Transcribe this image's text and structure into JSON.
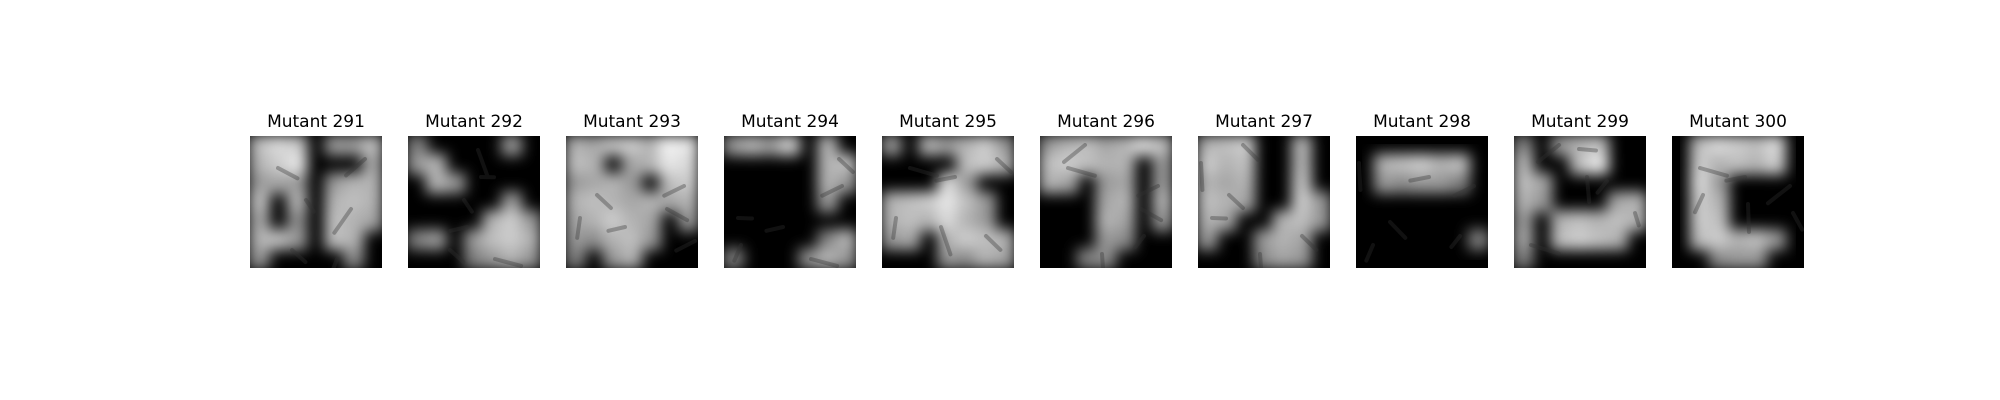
{
  "figure": {
    "panels": [
      {
        "title": "Mutant 291",
        "image_desc": "grayscale mutant cell mask",
        "mask": [
          [
            0.75,
            0.85,
            0.8,
            0.0,
            0.6,
            0.6,
            0.75
          ],
          [
            0.7,
            0.8,
            0.9,
            0.0,
            0.0,
            0.0,
            0.65
          ],
          [
            0.6,
            0.65,
            0.6,
            0.0,
            0.6,
            0.7,
            0.7
          ],
          [
            0.75,
            0.0,
            0.7,
            0.0,
            0.7,
            0.75,
            0.7
          ],
          [
            0.65,
            0.0,
            0.55,
            0.0,
            0.75,
            0.7,
            0.65
          ],
          [
            0.7,
            0.75,
            0.6,
            0.0,
            0.75,
            0.7,
            0.0
          ],
          [
            0.6,
            0.0,
            0.0,
            0.0,
            0.0,
            0.55,
            0.0
          ]
        ]
      },
      {
        "title": "Mutant 292",
        "image_desc": "grayscale mutant cell mask",
        "mask": [
          [
            0.5,
            0.0,
            0.0,
            0.0,
            0.0,
            0.6,
            0.0
          ],
          [
            0.6,
            0.7,
            0.0,
            0.0,
            0.0,
            0.0,
            0.0
          ],
          [
            0.0,
            0.7,
            0.6,
            0.0,
            0.0,
            0.0,
            0.0
          ],
          [
            0.0,
            0.0,
            0.0,
            0.0,
            0.0,
            0.6,
            0.0
          ],
          [
            0.0,
            0.0,
            0.0,
            0.0,
            0.7,
            0.8,
            0.6
          ],
          [
            0.5,
            0.6,
            0.0,
            0.6,
            0.75,
            0.8,
            0.7
          ],
          [
            0.0,
            0.0,
            0.0,
            0.5,
            0.6,
            0.7,
            0.6
          ]
        ]
      },
      {
        "title": "Mutant 293",
        "image_desc": "grayscale mutant cell mask",
        "mask": [
          [
            0.7,
            0.65,
            0.75,
            0.8,
            0.7,
            0.95,
            0.9
          ],
          [
            0.75,
            0.7,
            0.0,
            0.65,
            0.7,
            0.9,
            0.85
          ],
          [
            0.6,
            0.65,
            0.7,
            0.6,
            0.0,
            0.75,
            0.8
          ],
          [
            0.7,
            0.75,
            0.7,
            0.65,
            0.7,
            0.65,
            0.7
          ],
          [
            0.65,
            0.7,
            0.8,
            0.7,
            0.65,
            0.0,
            0.6
          ],
          [
            0.6,
            0.55,
            0.7,
            0.75,
            0.6,
            0.0,
            0.0
          ],
          [
            0.5,
            0.0,
            0.6,
            0.7,
            0.0,
            0.0,
            0.0
          ]
        ]
      },
      {
        "title": "Mutant 294",
        "image_desc": "grayscale mutant cell mask",
        "mask": [
          [
            0.6,
            0.7,
            0.6,
            0.8,
            0.0,
            0.7,
            0.0
          ],
          [
            0.0,
            0.0,
            0.0,
            0.0,
            0.0,
            0.7,
            0.75
          ],
          [
            0.0,
            0.0,
            0.0,
            0.0,
            0.0,
            0.7,
            0.6
          ],
          [
            0.0,
            0.0,
            0.0,
            0.0,
            0.0,
            0.6,
            0.0
          ],
          [
            0.0,
            0.0,
            0.0,
            0.0,
            0.0,
            0.0,
            0.0
          ],
          [
            0.0,
            0.0,
            0.0,
            0.0,
            0.0,
            0.5,
            0.7
          ],
          [
            0.5,
            0.0,
            0.0,
            0.0,
            0.55,
            0.7,
            0.6
          ]
        ]
      },
      {
        "title": "Mutant 295",
        "image_desc": "grayscale mutant cell mask",
        "mask": [
          [
            0.6,
            0.0,
            0.7,
            0.6,
            0.7,
            0.8,
            0.6
          ],
          [
            0.0,
            0.0,
            0.0,
            0.0,
            0.75,
            0.8,
            0.7
          ],
          [
            0.0,
            0.0,
            0.0,
            0.85,
            0.6,
            0.0,
            0.0
          ],
          [
            0.7,
            0.75,
            0.8,
            0.9,
            0.75,
            0.6,
            0.0
          ],
          [
            0.7,
            0.75,
            0.7,
            0.85,
            0.7,
            0.6,
            0.0
          ],
          [
            0.6,
            0.65,
            0.0,
            0.7,
            0.8,
            0.75,
            0.7
          ],
          [
            0.0,
            0.0,
            0.0,
            0.6,
            0.55,
            0.7,
            0.65
          ]
        ]
      },
      {
        "title": "Mutant 296",
        "image_desc": "grayscale mutant cell mask",
        "mask": [
          [
            0.6,
            0.7,
            0.75,
            0.65,
            0.7,
            0.85,
            0.75
          ],
          [
            0.75,
            0.8,
            0.75,
            0.7,
            0.7,
            0.0,
            0.6
          ],
          [
            0.7,
            0.65,
            0.0,
            0.6,
            0.65,
            0.0,
            0.6
          ],
          [
            0.0,
            0.0,
            0.0,
            0.65,
            0.7,
            0.0,
            0.7
          ],
          [
            0.0,
            0.0,
            0.0,
            0.7,
            0.65,
            0.0,
            0.6
          ],
          [
            0.0,
            0.0,
            0.0,
            0.6,
            0.55,
            0.0,
            0.0
          ],
          [
            0.0,
            0.0,
            0.5,
            0.55,
            0.0,
            0.0,
            0.0
          ]
        ]
      },
      {
        "title": "Mutant 297",
        "image_desc": "grayscale mutant cell mask",
        "mask": [
          [
            0.7,
            0.75,
            0.8,
            0.0,
            0.0,
            0.7,
            0.0
          ],
          [
            0.8,
            0.7,
            0.75,
            0.0,
            0.0,
            0.7,
            0.0
          ],
          [
            0.7,
            0.65,
            0.7,
            0.0,
            0.0,
            0.75,
            0.0
          ],
          [
            0.75,
            0.7,
            0.65,
            0.0,
            0.0,
            0.8,
            0.6
          ],
          [
            0.7,
            0.65,
            0.0,
            0.0,
            0.7,
            0.75,
            0.6
          ],
          [
            0.6,
            0.0,
            0.0,
            0.6,
            0.7,
            0.65,
            0.0
          ],
          [
            0.0,
            0.0,
            0.0,
            0.55,
            0.65,
            0.6,
            0.0
          ]
        ]
      },
      {
        "title": "Mutant 298",
        "image_desc": "grayscale mutant cell mask",
        "mask": [
          [
            0.0,
            0.0,
            0.0,
            0.0,
            0.0,
            0.0,
            0.0
          ],
          [
            0.0,
            0.7,
            0.75,
            0.8,
            0.7,
            0.75,
            0.0
          ],
          [
            0.0,
            0.6,
            0.55,
            0.6,
            0.6,
            0.5,
            0.0
          ],
          [
            0.0,
            0.0,
            0.0,
            0.0,
            0.0,
            0.0,
            0.0
          ],
          [
            0.0,
            0.0,
            0.0,
            0.0,
            0.0,
            0.0,
            0.0
          ],
          [
            0.0,
            0.0,
            0.0,
            0.0,
            0.0,
            0.0,
            0.5
          ],
          [
            0.0,
            0.0,
            0.0,
            0.0,
            0.0,
            0.0,
            0.0
          ]
        ]
      },
      {
        "title": "Mutant 299",
        "image_desc": "grayscale mutant cell mask",
        "mask": [
          [
            0.5,
            0.0,
            0.6,
            0.7,
            0.75,
            0.0,
            0.0
          ],
          [
            0.7,
            0.0,
            0.0,
            0.75,
            0.9,
            0.0,
            0.0
          ],
          [
            0.75,
            0.65,
            0.0,
            0.0,
            0.0,
            0.0,
            0.0
          ],
          [
            0.7,
            0.6,
            0.0,
            0.0,
            0.0,
            0.65,
            0.7
          ],
          [
            0.6,
            0.0,
            0.7,
            0.75,
            0.7,
            0.75,
            0.7
          ],
          [
            0.65,
            0.0,
            0.75,
            0.8,
            0.75,
            0.7,
            0.0
          ],
          [
            0.5,
            0.0,
            0.0,
            0.0,
            0.0,
            0.0,
            0.0
          ]
        ]
      },
      {
        "title": "Mutant 300",
        "image_desc": "grayscale mutant cell mask",
        "mask": [
          [
            0.0,
            0.75,
            0.85,
            0.8,
            0.75,
            0.85,
            0.0
          ],
          [
            0.0,
            0.8,
            0.7,
            0.75,
            0.7,
            0.8,
            0.0
          ],
          [
            0.0,
            0.85,
            0.6,
            0.0,
            0.0,
            0.0,
            0.0
          ],
          [
            0.0,
            0.8,
            0.7,
            0.0,
            0.0,
            0.0,
            0.0
          ],
          [
            0.0,
            0.8,
            0.75,
            0.0,
            0.0,
            0.0,
            0.0
          ],
          [
            0.0,
            0.75,
            0.8,
            0.7,
            0.75,
            0.6,
            0.0
          ],
          [
            0.0,
            0.0,
            0.55,
            0.6,
            0.6,
            0.0,
            0.0
          ]
        ]
      }
    ]
  }
}
